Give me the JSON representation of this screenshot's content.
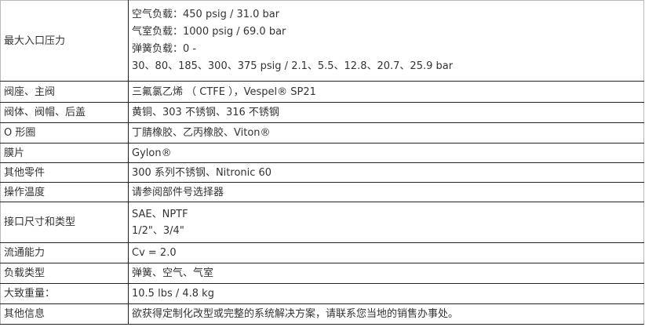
{
  "rows": [
    {
      "label": "最大入口压力",
      "lines": [
        "空气负载：450 psig / 31.0 bar",
        "气室负载：1000 psig / 69.0 bar",
        "弹簧负载：0 -",
        "30、80、185、300、375 psig / 2.1、5.5、12.8、20.7、25.9 bar"
      ]
    },
    {
      "label": "阀座、主阀",
      "lines": [
        "三氟氯乙烯 （ CTFE ），Vespel® SP21"
      ]
    },
    {
      "label": "阀体、阀帽、后盖",
      "lines": [
        "黄铜、303 不锈钢、316 不锈钢"
      ]
    },
    {
      "label": "O 形圈",
      "lines": [
        "丁腈橡胶、乙丙橡胶、Viton®"
      ]
    },
    {
      "label": "膜片",
      "lines": [
        "Gylon®"
      ]
    },
    {
      "label": "其他零件",
      "lines": [
        "300 系列不锈钢、Nitronic 60"
      ]
    },
    {
      "label": "操作温度",
      "lines": [
        "请参阅部件号选择器"
      ]
    },
    {
      "label": "接口尺寸和类型",
      "lines": [
        "SAE、NPTF",
        "1/2\"、3/4\""
      ]
    },
    {
      "label": "流通能力",
      "lines": [
        "Cv = 2.0"
      ]
    },
    {
      "label": "负载类型",
      "lines": [
        "弹簧、空气、气室"
      ]
    },
    {
      "label": "大致重量：",
      "lines": [
        "10.5 lbs / 4.8 kg"
      ]
    },
    {
      "label": "其他信息",
      "lines": [
        "欲获得定制化改型或完整的系统解决方案，请联系您当地的销售办事处。"
      ]
    }
  ]
}
